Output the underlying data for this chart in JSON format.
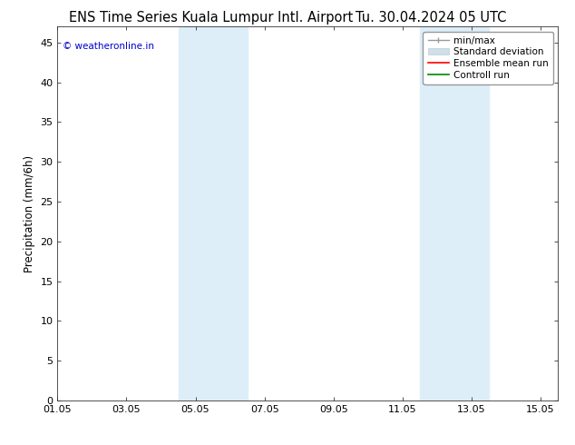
{
  "title_left": "ENS Time Series Kuala Lumpur Intl. Airport",
  "title_right": "Tu. 30.04.2024 05 UTC",
  "ylabel": "Precipitation (mm/6h)",
  "watermark": "© weatheronline.in",
  "watermark_color": "#0000cc",
  "xlim_start": 0.0,
  "xlim_end": 14.5,
  "ylim_bottom": 0,
  "ylim_top": 47,
  "yticks": [
    0,
    5,
    10,
    15,
    20,
    25,
    30,
    35,
    40,
    45
  ],
  "xtick_labels": [
    "01.05",
    "03.05",
    "05.05",
    "07.05",
    "09.05",
    "11.05",
    "13.05",
    "15.05"
  ],
  "xtick_positions": [
    0,
    2,
    4,
    6,
    8,
    10,
    12,
    14
  ],
  "background_color": "#ffffff",
  "plot_bg_color": "#ffffff",
  "shaded_regions": [
    {
      "x_start": 3.5,
      "x_end": 5.5,
      "color": "#ddeef8",
      "alpha": 1.0
    },
    {
      "x_start": 10.5,
      "x_end": 12.5,
      "color": "#ddeef8",
      "alpha": 1.0
    }
  ],
  "legend_items": [
    {
      "label": "min/max",
      "color": "#aaaaaa",
      "style": "line_with_ticks"
    },
    {
      "label": "Standard deviation",
      "color": "#ccddee",
      "style": "filled_box"
    },
    {
      "label": "Ensemble mean run",
      "color": "#ff0000",
      "style": "line"
    },
    {
      "label": "Controll run",
      "color": "#008800",
      "style": "line"
    }
  ],
  "title_fontsize": 10.5,
  "tick_fontsize": 8,
  "legend_fontsize": 7.5,
  "ylabel_fontsize": 8.5
}
